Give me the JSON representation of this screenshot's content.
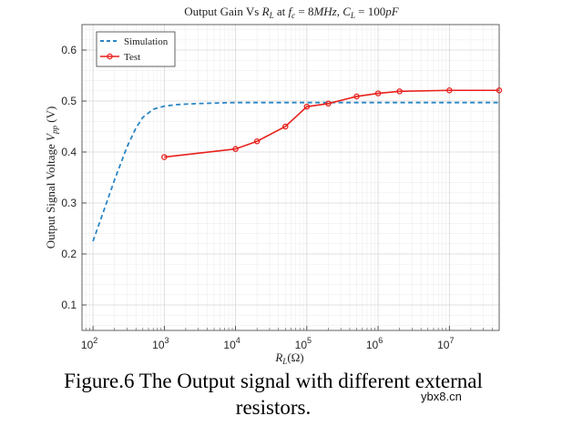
{
  "chart_data": {
    "type": "line",
    "title": "Output Gain Vs R_L at f_c = 8MHz, C_L = 100pF",
    "xlabel": "R_L(Ω)",
    "ylabel": "Output Signal Voltage V_pp (V)",
    "xscale": "log",
    "xlim": [
      70,
      50000000
    ],
    "ylim": [
      0.05,
      0.65
    ],
    "yticks": [
      0.1,
      0.2,
      0.3,
      0.4,
      0.5,
      0.6
    ],
    "ytick_labels": [
      "0.1",
      "0.2",
      "0.3",
      "0.4",
      "0.5",
      "0.6"
    ],
    "xticks": [
      100,
      1000,
      10000,
      100000,
      1000000,
      10000000
    ],
    "xtick_labels": [
      {
        "base": "10",
        "exp": "2"
      },
      {
        "base": "10",
        "exp": "3"
      },
      {
        "base": "10",
        "exp": "4"
      },
      {
        "base": "10",
        "exp": "5"
      },
      {
        "base": "10",
        "exp": "6"
      },
      {
        "base": "10",
        "exp": "7"
      }
    ],
    "grid": true,
    "legend_position": "top-left",
    "series": [
      {
        "name": "Simulation",
        "style": "dashed",
        "color": "#2b86c5",
        "x": [
          100,
          150,
          200,
          300,
          400,
          500,
          700,
          1000,
          1500,
          2000,
          3000,
          5000,
          10000,
          100000,
          1000000,
          10000000,
          50000000
        ],
        "y": [
          0.225,
          0.295,
          0.345,
          0.41,
          0.447,
          0.468,
          0.484,
          0.49,
          0.493,
          0.494,
          0.495,
          0.496,
          0.497,
          0.497,
          0.497,
          0.497,
          0.497
        ]
      },
      {
        "name": "Test",
        "style": "solid-marker",
        "color": "#e8211d",
        "x": [
          1000,
          10000,
          20000,
          50000,
          100000,
          200000,
          500000,
          1000000,
          2000000,
          10000000,
          50000000
        ],
        "y": [
          0.39,
          0.406,
          0.421,
          0.45,
          0.489,
          0.495,
          0.509,
          0.515,
          0.519,
          0.521,
          0.521
        ]
      }
    ]
  },
  "caption": {
    "line1": "Figure.6 The Output signal with different external",
    "line2": "resistors."
  },
  "watermark": "ybx8.cn"
}
